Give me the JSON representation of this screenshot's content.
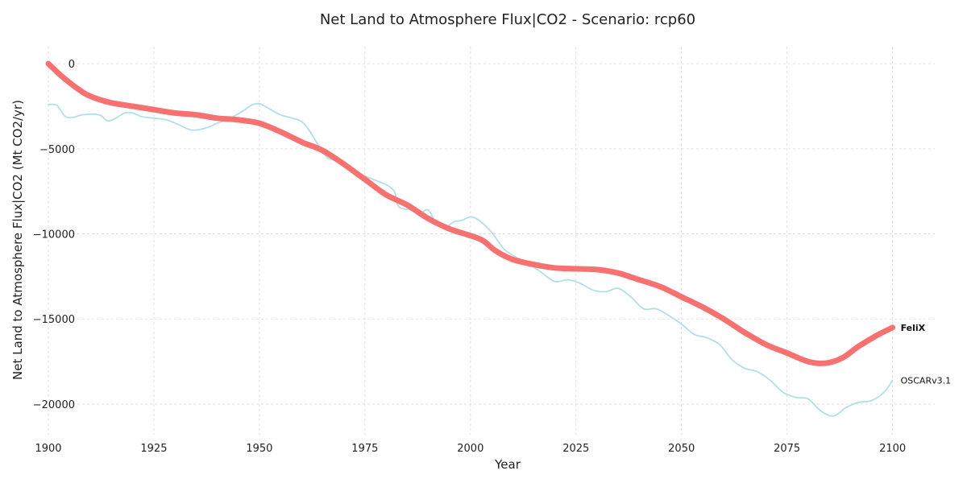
{
  "chart_data": {
    "type": "line",
    "title": "Net Land to Atmosphere Flux|CO2 - Scenario: rcp60",
    "xlabel": "Year",
    "ylabel": "Net Land to Atmosphere Flux|CO2 (Mt CO2/yr)",
    "xlim": [
      1900,
      2110
    ],
    "ylim": [
      -21800,
      1000
    ],
    "x_ticks": [
      1900,
      1925,
      1950,
      1975,
      2000,
      2025,
      2050,
      2075,
      2100
    ],
    "y_ticks": [
      0,
      -5000,
      -10000,
      -15000,
      -20000
    ],
    "y_tick_labels": [
      "0",
      "−5000",
      "−10000",
      "−15000",
      "−20000"
    ],
    "grid": true,
    "legend": "none (series labels at line ends)",
    "series": [
      {
        "name": "OSCARv3.1",
        "color": "#b0e0e6",
        "line_width": "thin",
        "points": [
          [
            1900,
            -2400
          ],
          [
            1902,
            -2450
          ],
          [
            1904,
            -3100
          ],
          [
            1906,
            -3150
          ],
          [
            1908,
            -3000
          ],
          [
            1912,
            -3000
          ],
          [
            1914,
            -3350
          ],
          [
            1916,
            -3200
          ],
          [
            1918,
            -2900
          ],
          [
            1920,
            -2900
          ],
          [
            1922,
            -3100
          ],
          [
            1925,
            -3200
          ],
          [
            1928,
            -3300
          ],
          [
            1931,
            -3600
          ],
          [
            1934,
            -3900
          ],
          [
            1937,
            -3800
          ],
          [
            1940,
            -3500
          ],
          [
            1943,
            -3200
          ],
          [
            1946,
            -2800
          ],
          [
            1948,
            -2450
          ],
          [
            1950,
            -2350
          ],
          [
            1952,
            -2600
          ],
          [
            1955,
            -3000
          ],
          [
            1957,
            -3150
          ],
          [
            1960,
            -3400
          ],
          [
            1962,
            -4000
          ],
          [
            1964,
            -4800
          ],
          [
            1966,
            -5500
          ],
          [
            1968,
            -5700
          ],
          [
            1970,
            -6000
          ],
          [
            1972,
            -6200
          ],
          [
            1975,
            -6600
          ],
          [
            1978,
            -6900
          ],
          [
            1980,
            -7100
          ],
          [
            1982,
            -7500
          ],
          [
            1983,
            -8400
          ],
          [
            1986,
            -8600
          ],
          [
            1988,
            -8800
          ],
          [
            1990,
            -8600
          ],
          [
            1992,
            -9400
          ],
          [
            1994,
            -9600
          ],
          [
            1996,
            -9300
          ],
          [
            1998,
            -9200
          ],
          [
            2000,
            -9000
          ],
          [
            2002,
            -9200
          ],
          [
            2005,
            -9900
          ],
          [
            2008,
            -10900
          ],
          [
            2011,
            -11400
          ],
          [
            2014,
            -11800
          ],
          [
            2017,
            -12300
          ],
          [
            2020,
            -12800
          ],
          [
            2023,
            -12700
          ],
          [
            2026,
            -12900
          ],
          [
            2029,
            -13300
          ],
          [
            2032,
            -13400
          ],
          [
            2035,
            -13200
          ],
          [
            2038,
            -13700
          ],
          [
            2041,
            -14400
          ],
          [
            2044,
            -14400
          ],
          [
            2047,
            -14800
          ],
          [
            2050,
            -15300
          ],
          [
            2053,
            -15900
          ],
          [
            2056,
            -16100
          ],
          [
            2059,
            -16500
          ],
          [
            2062,
            -17400
          ],
          [
            2065,
            -17900
          ],
          [
            2068,
            -18100
          ],
          [
            2071,
            -18600
          ],
          [
            2074,
            -19300
          ],
          [
            2077,
            -19600
          ],
          [
            2080,
            -19700
          ],
          [
            2083,
            -20400
          ],
          [
            2086,
            -20700
          ],
          [
            2089,
            -20200
          ],
          [
            2092,
            -19900
          ],
          [
            2095,
            -19800
          ],
          [
            2098,
            -19300
          ],
          [
            2100,
            -18600
          ]
        ]
      },
      {
        "name": "FeliX",
        "color": "#f87171",
        "line_width": "thick",
        "points": [
          [
            1900,
            0
          ],
          [
            1903,
            -700
          ],
          [
            1906,
            -1300
          ],
          [
            1909,
            -1800
          ],
          [
            1912,
            -2100
          ],
          [
            1915,
            -2300
          ],
          [
            1920,
            -2500
          ],
          [
            1925,
            -2700
          ],
          [
            1930,
            -2900
          ],
          [
            1935,
            -3000
          ],
          [
            1940,
            -3200
          ],
          [
            1945,
            -3300
          ],
          [
            1950,
            -3500
          ],
          [
            1955,
            -4000
          ],
          [
            1960,
            -4600
          ],
          [
            1965,
            -5100
          ],
          [
            1970,
            -5900
          ],
          [
            1975,
            -6800
          ],
          [
            1980,
            -7700
          ],
          [
            1985,
            -8300
          ],
          [
            1990,
            -9100
          ],
          [
            1995,
            -9700
          ],
          [
            2000,
            -10100
          ],
          [
            2003,
            -10400
          ],
          [
            2006,
            -11000
          ],
          [
            2010,
            -11500
          ],
          [
            2015,
            -11800
          ],
          [
            2020,
            -12000
          ],
          [
            2025,
            -12050
          ],
          [
            2030,
            -12100
          ],
          [
            2035,
            -12300
          ],
          [
            2040,
            -12700
          ],
          [
            2045,
            -13100
          ],
          [
            2050,
            -13700
          ],
          [
            2055,
            -14300
          ],
          [
            2060,
            -15000
          ],
          [
            2065,
            -15800
          ],
          [
            2070,
            -16500
          ],
          [
            2075,
            -17000
          ],
          [
            2080,
            -17500
          ],
          [
            2084,
            -17600
          ],
          [
            2088,
            -17300
          ],
          [
            2092,
            -16600
          ],
          [
            2096,
            -16000
          ],
          [
            2100,
            -15500
          ]
        ]
      }
    ]
  }
}
